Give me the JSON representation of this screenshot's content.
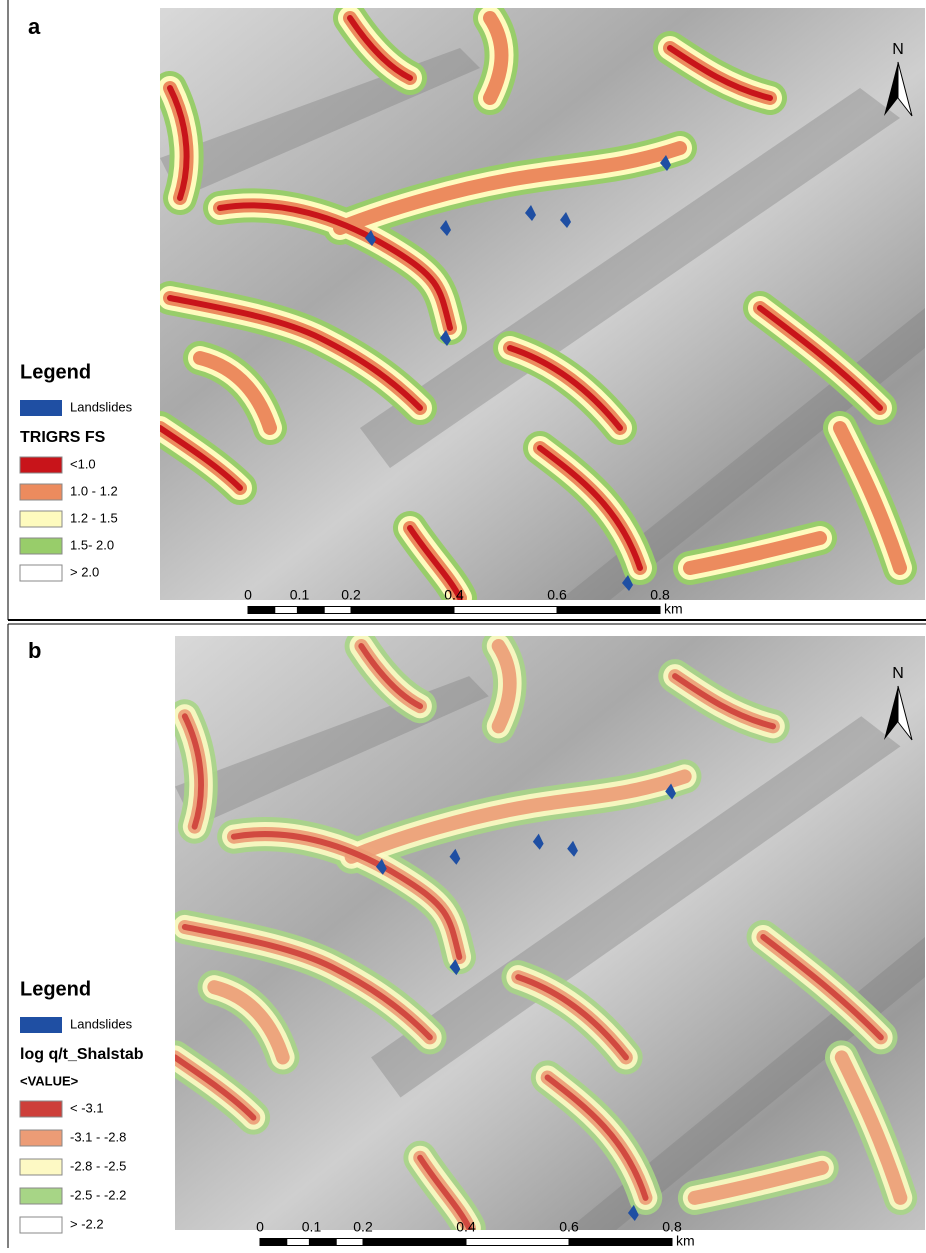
{
  "panels": [
    {
      "label": "a",
      "legend_title": "Legend",
      "landslides": "Landslides",
      "landslide_color": "#1f4fa3",
      "variable": "TRIGRS FS",
      "classes": [
        {
          "label": "<1.0",
          "color": "#c8141a"
        },
        {
          "label": "1.0 - 1.2",
          "color": "#ec8b5e"
        },
        {
          "label": "1.2 - 1.5",
          "color": "#fefbbe"
        },
        {
          "label": "1.5- 2.0",
          "color": "#98cd6a"
        },
        {
          "label": "> 2.0",
          "color": "#ffffff"
        }
      ],
      "scale": [
        "0",
        "0.1",
        "0.2",
        "0.4",
        "0.6",
        "0.8"
      ],
      "scale_unit": "km",
      "north": "N"
    },
    {
      "label": "b",
      "legend_title": "Legend",
      "landslides": "Landslides",
      "landslide_color": "#1f4fa3",
      "variable": "log q/t_Shalstab",
      "field": "<VALUE>",
      "classes": [
        {
          "label": "< -3.1",
          "color": "#cd3f3a"
        },
        {
          "label": "-3.1 - -2.8",
          "color": "#ec9c76"
        },
        {
          "label": "-2.8 - -2.5",
          "color": "#fdf9c4"
        },
        {
          "label": "-2.5 - -2.2",
          "color": "#a7d586"
        },
        {
          "label": "> -2.2",
          "color": "#ffffff"
        }
      ],
      "scale": [
        "0",
        "0.1",
        "0.2",
        "0.4",
        "0.6",
        "0.8"
      ],
      "scale_unit": "km",
      "north": "N"
    }
  ]
}
